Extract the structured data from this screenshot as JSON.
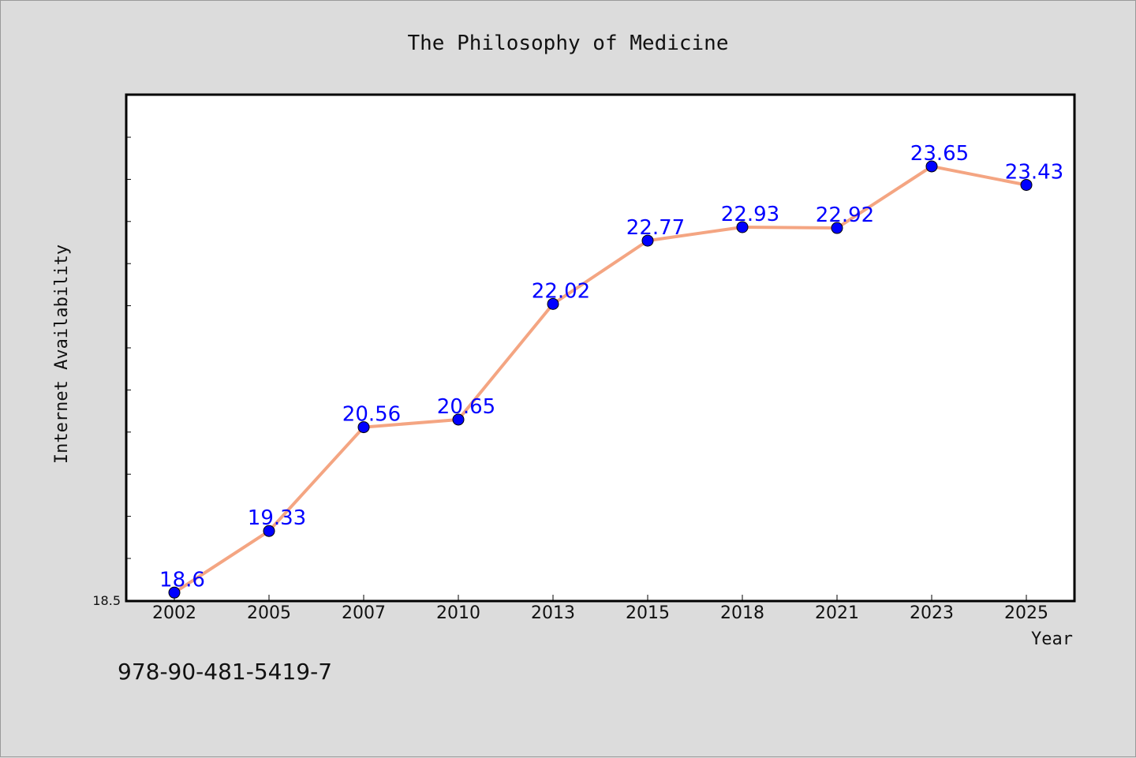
{
  "chart_data": {
    "type": "line",
    "title": "The Philosophy of Medicine",
    "xlabel": "Year",
    "ylabel": "Internet Availability",
    "categories": [
      "2002",
      "2005",
      "2007",
      "2010",
      "2013",
      "2015",
      "2018",
      "2021",
      "2023",
      "2025"
    ],
    "series": [
      {
        "values": [
          18.6,
          19.33,
          20.56,
          20.65,
          22.02,
          22.77,
          22.93,
          22.92,
          23.65,
          23.43
        ]
      }
    ],
    "data_labels": [
      "18.6",
      "19.33",
      "20.56",
      "20.65",
      "22.02",
      "22.77",
      "22.93",
      "22.92",
      "23.65",
      "23.43"
    ],
    "y_tick_labels": [
      "18.5"
    ],
    "ylim": [
      18.5,
      24.5
    ],
    "grid": false,
    "line_color": "#f4a582",
    "marker_color": "#0000ff",
    "label_color": "#0000ff",
    "background_color": "#dcdcdc",
    "plot_background_color": "#ffffff"
  },
  "footer": {
    "isbn": "978-90-481-5419-7"
  }
}
